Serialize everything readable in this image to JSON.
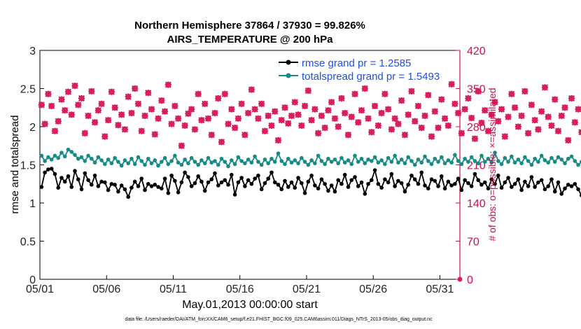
{
  "chart_data": {
    "type": "line",
    "title": "Northern Hemisphere 37864 / 37930 = 99.826%",
    "subtitle": "AIRS_TEMPERATURE @ 200 hPa",
    "xlabel": "May.01,2013 00:00:00 start",
    "ylabel": "rmse and totalspread",
    "ylabel_right": "# of obs: o=possible; ×=assimilated",
    "footnote": "data file: /Users/raeder/DAI/ATM_forcXX/CAM6_setup/f.e21.FHIST_BGC.f09_025.CAM6assim.011/Diags_NTrS_2013-05/obs_diag_output.nc",
    "xlim": [
      0,
      31.5
    ],
    "ylim": [
      0,
      3
    ],
    "ylim_right": [
      0,
      420
    ],
    "x_ticks": [
      0,
      5,
      10,
      15,
      20,
      25,
      30
    ],
    "x_tick_labels": [
      "05/01",
      "05/06",
      "05/11",
      "05/16",
      "05/21",
      "05/26",
      "05/31"
    ],
    "y_ticks": [
      0,
      0.5,
      1,
      1.5,
      2,
      2.5,
      3
    ],
    "y_tick_labels": [
      "0",
      "0.5",
      "1",
      "1.5",
      "2",
      "2.5",
      "3"
    ],
    "y_ticks_right": [
      0,
      70,
      140,
      210,
      280,
      350,
      420
    ],
    "y_tick_labels_right": [
      "0",
      "70",
      "140",
      "210",
      "280",
      "350",
      "420"
    ],
    "series": [
      {
        "name": "rmse grand pr = 1.2585",
        "color": "#000000",
        "axis": "left",
        "marker": "circle",
        "values": [
          1.21,
          1.4,
          1.44,
          1.45,
          1.38,
          1.2,
          1.33,
          1.28,
          1.35,
          1.21,
          1.42,
          1.31,
          1.18,
          1.39,
          1.3,
          1.24,
          1.36,
          1.22,
          1.28,
          1.27,
          1.17,
          1.25,
          1.24,
          1.15,
          1.23,
          1.18,
          1.08,
          1.2,
          1.28,
          1.22,
          1.32,
          1.17,
          1.25,
          1.22,
          1.24,
          1.21,
          1.19,
          1.32,
          1.13,
          1.36,
          1.29,
          1.14,
          1.27,
          1.4,
          1.34,
          1.22,
          1.26,
          1.35,
          1.28,
          1.16,
          1.27,
          1.31,
          1.39,
          1.23,
          1.27,
          1.3,
          1.24,
          1.37,
          1.11,
          1.27,
          1.33,
          1.22,
          1.3,
          1.25,
          1.32,
          1.36,
          1.18,
          1.26,
          1.32,
          1.4,
          1.27,
          1.24,
          1.18,
          1.29,
          1.21,
          1.27,
          1.2,
          1.33,
          1.26,
          1.13,
          1.28,
          1.36,
          1.23,
          1.19,
          1.31,
          1.25,
          1.16,
          1.23,
          1.15,
          1.3,
          1.25,
          1.37,
          1.21,
          1.3,
          1.34,
          1.22,
          1.27,
          1.12,
          1.25,
          1.3,
          1.43,
          1.25,
          1.2,
          1.31,
          1.27,
          1.38,
          1.22,
          1.29,
          1.26,
          1.15,
          1.24,
          1.36,
          1.31,
          1.25,
          1.4,
          1.23,
          1.19,
          1.31,
          1.29,
          1.22,
          1.35,
          1.19,
          1.28,
          1.23,
          1.25,
          1.32,
          1.17,
          1.3,
          1.26,
          1.22,
          1.38,
          1.3,
          1.24,
          1.27,
          1.19,
          1.31,
          1.25,
          1.36,
          1.2,
          1.27,
          1.33,
          1.21,
          1.25,
          1.31,
          1.17,
          1.28,
          1.22,
          1.34,
          1.21,
          1.27,
          1.3,
          1.18,
          1.22,
          1.31,
          1.15,
          1.27,
          1.12,
          1.19,
          1.24,
          1.22,
          1.25,
          1.18,
          1.1,
          1.2,
          1.25,
          1.22,
          1.12,
          1.16,
          1.1,
          1.2,
          1.23,
          1.18,
          1.22,
          1.24,
          1.25,
          1.25
        ]
      },
      {
        "name": "totalspread grand pr = 1.5493",
        "color": "#168a85",
        "axis": "left",
        "marker": "circle",
        "values": [
          1.62,
          1.55,
          1.6,
          1.57,
          1.62,
          1.59,
          1.66,
          1.61,
          1.7,
          1.67,
          1.63,
          1.58,
          1.6,
          1.55,
          1.62,
          1.58,
          1.53,
          1.6,
          1.56,
          1.51,
          1.57,
          1.52,
          1.59,
          1.54,
          1.49,
          1.56,
          1.52,
          1.58,
          1.51,
          1.6,
          1.55,
          1.5,
          1.58,
          1.52,
          1.56,
          1.49,
          1.54,
          1.59,
          1.51,
          1.55,
          1.62,
          1.53,
          1.5,
          1.57,
          1.52,
          1.59,
          1.54,
          1.5,
          1.56,
          1.52,
          1.59,
          1.53,
          1.55,
          1.5,
          1.58,
          1.54,
          1.48,
          1.56,
          1.51,
          1.6,
          1.55,
          1.52,
          1.57,
          1.53,
          1.61,
          1.54,
          1.5,
          1.57,
          1.52,
          1.58,
          1.54,
          1.65,
          1.55,
          1.51,
          1.58,
          1.53,
          1.56,
          1.52,
          1.59,
          1.54,
          1.5,
          1.56,
          1.52,
          1.62,
          1.55,
          1.51,
          1.58,
          1.54,
          1.57,
          1.52,
          1.59,
          1.53,
          1.56,
          1.51,
          1.62,
          1.54,
          1.58,
          1.52,
          1.57,
          1.55,
          1.6,
          1.53,
          1.56,
          1.51,
          1.59,
          1.54,
          1.62,
          1.53,
          1.57,
          1.52,
          1.6,
          1.55,
          1.5,
          1.57,
          1.53,
          1.61,
          1.55,
          1.51,
          1.58,
          1.54,
          1.6,
          1.52,
          1.56,
          1.53,
          1.63,
          1.55,
          1.51,
          1.58,
          1.54,
          1.6,
          1.55,
          1.52,
          1.62,
          1.54,
          1.58,
          1.53,
          1.66,
          1.55,
          1.51,
          1.59,
          1.54,
          1.61,
          1.53,
          1.57,
          1.52,
          1.6,
          1.55,
          1.5,
          1.58,
          1.54,
          1.62,
          1.56,
          1.53,
          1.59,
          1.54,
          1.6,
          1.57,
          1.52,
          1.58,
          1.61,
          1.55,
          1.5,
          1.54,
          1.59,
          1.47,
          1.53,
          1.5,
          1.58,
          1.52,
          1.49,
          1.55,
          1.47,
          1.51,
          1.44,
          1.5,
          1.46,
          1.52,
          1.48,
          1.46,
          1.5,
          1.49,
          1.5
        ]
      },
      {
        "name": "possible",
        "color": "#d61f5f",
        "axis": "right",
        "marker": "circle",
        "values": [
          320,
          285,
          340,
          318,
          272,
          290,
          330,
          310,
          344,
          302,
          355,
          320,
          332,
          268,
          300,
          345,
          288,
          310,
          322,
          262,
          292,
          344,
          315,
          283,
          302,
          275,
          335,
          305,
          350,
          322,
          272,
          300,
          342,
          312,
          266,
          295,
          328,
          308,
          357,
          285,
          318,
          295,
          245,
          282,
          304,
          312,
          275,
          340,
          292,
          322,
          295,
          265,
          305,
          332,
          252,
          340,
          285,
          312,
          278,
          295,
          322,
          265,
          305,
          348,
          312,
          295,
          322,
          272,
          300,
          282,
          308,
          255,
          292,
          315,
          286,
          300,
          325,
          302,
          282,
          318,
          346,
          292,
          312,
          268,
          300,
          278,
          310,
          325,
          295,
          280,
          332,
          305,
          265,
          298,
          340,
          288,
          310,
          350,
          295,
          270,
          318,
          282,
          305,
          340,
          312,
          275,
          295,
          285,
          328,
          265,
          302,
          345,
          290,
          318,
          278,
          300,
          338,
          262,
          308,
          278,
          330,
          295,
          282,
          358,
          322,
          305,
          268,
          312,
          332,
          296,
          258,
          345,
          287,
          310,
          272,
          302,
          325,
          290,
          312,
          262,
          298,
          340,
          315,
          280,
          300,
          345,
          268,
          320,
          292,
          275,
          308,
          352,
          298,
          282,
          330,
          272,
          300,
          315,
          255,
          332,
          288,
          312,
          270,
          300,
          340,
          275,
          292,
          306,
          328,
          268,
          318,
          282,
          300,
          350,
          336,
          250
        ]
      },
      {
        "name": "assimilated",
        "color": "#d61f5f",
        "axis": "right",
        "marker": "star",
        "values": [
          320,
          285,
          340,
          318,
          272,
          290,
          330,
          310,
          344,
          302,
          355,
          320,
          332,
          268,
          300,
          345,
          288,
          310,
          322,
          262,
          292,
          344,
          315,
          283,
          302,
          275,
          335,
          305,
          350,
          322,
          272,
          300,
          342,
          312,
          266,
          295,
          328,
          308,
          357,
          285,
          318,
          295,
          245,
          282,
          304,
          312,
          275,
          340,
          292,
          322,
          295,
          265,
          305,
          332,
          252,
          340,
          285,
          312,
          278,
          295,
          322,
          265,
          305,
          348,
          312,
          295,
          322,
          272,
          300,
          282,
          308,
          255,
          292,
          315,
          286,
          300,
          325,
          302,
          282,
          318,
          346,
          292,
          312,
          268,
          300,
          278,
          310,
          325,
          295,
          280,
          332,
          305,
          265,
          298,
          340,
          288,
          310,
          350,
          295,
          270,
          318,
          282,
          305,
          340,
          312,
          275,
          295,
          285,
          328,
          265,
          302,
          345,
          290,
          318,
          278,
          300,
          338,
          262,
          308,
          278,
          330,
          295,
          282,
          358,
          322,
          305,
          268,
          312,
          332,
          296,
          258,
          345,
          287,
          310,
          272,
          302,
          325,
          290,
          312,
          262,
          298,
          340,
          315,
          280,
          300,
          345,
          268,
          320,
          292,
          275,
          308,
          352,
          298,
          282,
          330,
          272,
          300,
          315,
          255,
          332,
          288,
          312,
          270,
          300,
          340,
          275,
          292,
          306,
          328,
          268,
          318,
          282,
          300,
          350,
          336,
          250
        ]
      }
    ],
    "legend": {
      "position": "top-right",
      "entries": [
        "rmse grand pr = 1.2585",
        "totalspread grand pr = 1.5493"
      ]
    }
  },
  "colors": {
    "rmse": "#000000",
    "spread": "#168a85",
    "obs": "#d61f5f",
    "legend_text": "#1f4fe0",
    "right_axis": "#c8104f"
  }
}
